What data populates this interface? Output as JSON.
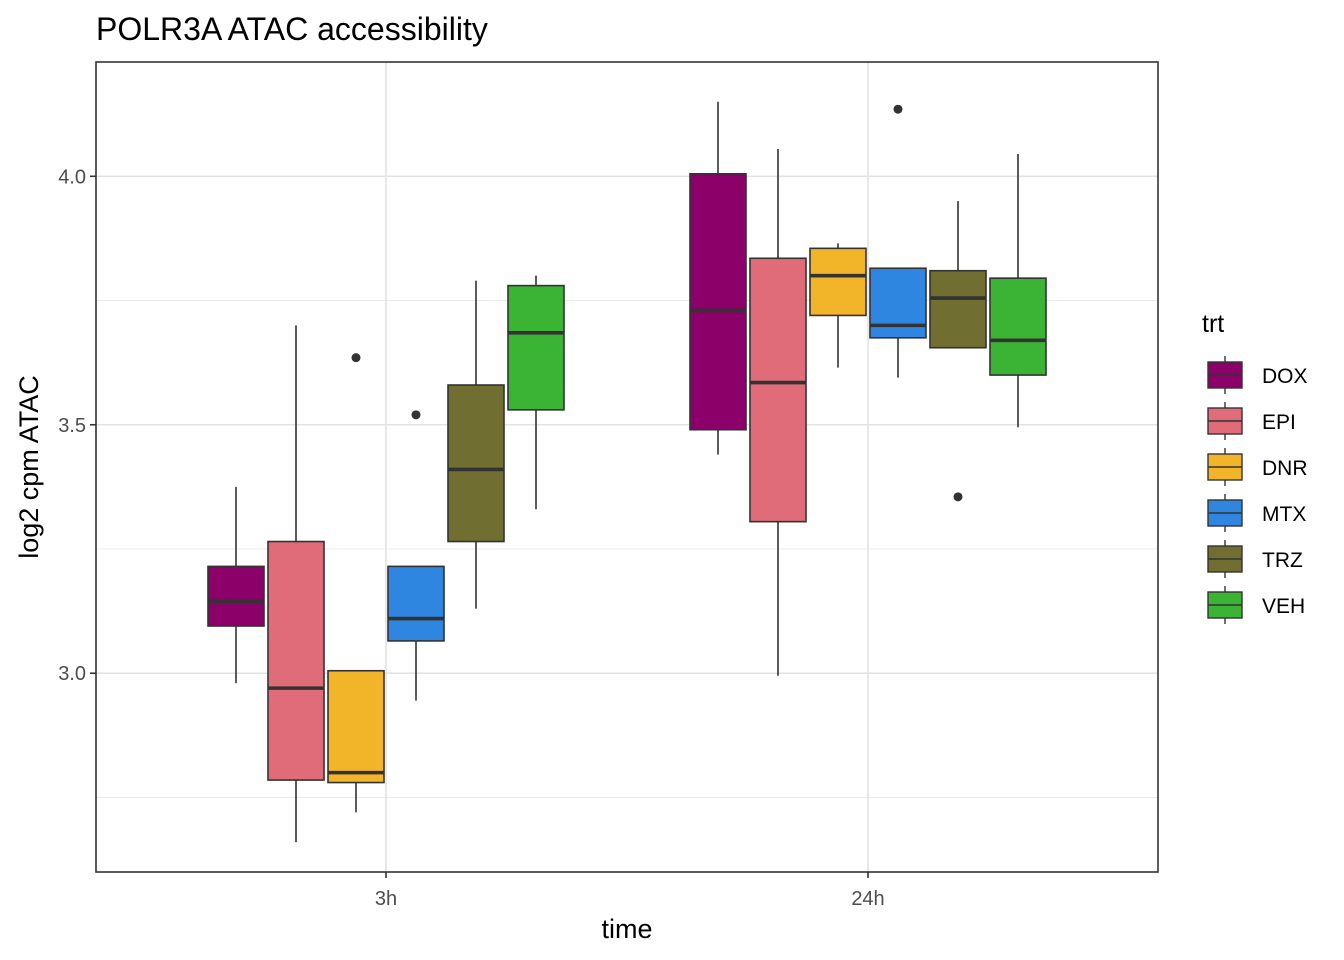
{
  "chart_data": {
    "type": "boxplot",
    "title": "POLR3A ATAC accessibility",
    "xlabel": "time",
    "ylabel": "log2 cpm ATAC",
    "categories": [
      "3h",
      "24h"
    ],
    "ylim": [
      2.6,
      4.23
    ],
    "yticks": [
      3.0,
      3.5,
      4.0
    ],
    "ytick_labels": [
      "3.0",
      "3.5",
      "4.0"
    ],
    "grid": true,
    "legend": {
      "title": "trt",
      "position": "right",
      "entries": [
        "DOX",
        "EPI",
        "DNR",
        "MTX",
        "TRZ",
        "VEH"
      ]
    },
    "colors": {
      "DOX": "#8B0069",
      "EPI": "#E06C7A",
      "DNR": "#F2B52A",
      "MTX": "#2E86E0",
      "TRZ": "#716E32",
      "VEH": "#3BB335"
    },
    "series": [
      {
        "name": "DOX",
        "boxes": [
          {
            "time": "3h",
            "min": 2.98,
            "q1": 3.095,
            "median": 3.145,
            "q3": 3.215,
            "max": 3.375,
            "outliers": []
          },
          {
            "time": "24h",
            "min": 3.44,
            "q1": 3.49,
            "median": 3.73,
            "q3": 4.005,
            "max": 4.15,
            "outliers": []
          }
        ]
      },
      {
        "name": "EPI",
        "boxes": [
          {
            "time": "3h",
            "min": 2.66,
            "q1": 2.785,
            "median": 2.97,
            "q3": 3.265,
            "max": 3.7,
            "outliers": []
          },
          {
            "time": "24h",
            "min": 2.995,
            "q1": 3.305,
            "median": 3.585,
            "q3": 3.835,
            "max": 4.055,
            "outliers": []
          }
        ]
      },
      {
        "name": "DNR",
        "boxes": [
          {
            "time": "3h",
            "min": 2.72,
            "q1": 2.78,
            "median": 2.8,
            "q3": 3.005,
            "max": 3.005,
            "outliers": [
              3.635
            ]
          },
          {
            "time": "24h",
            "min": 3.615,
            "q1": 3.72,
            "median": 3.8,
            "q3": 3.855,
            "max": 3.865,
            "outliers": []
          }
        ]
      },
      {
        "name": "MTX",
        "boxes": [
          {
            "time": "3h",
            "min": 2.945,
            "q1": 3.065,
            "median": 3.11,
            "q3": 3.215,
            "max": 3.215,
            "outliers": [
              3.52
            ]
          },
          {
            "time": "24h",
            "min": 3.595,
            "q1": 3.675,
            "median": 3.7,
            "q3": 3.815,
            "max": 3.815,
            "outliers": [
              4.135
            ]
          }
        ]
      },
      {
        "name": "TRZ",
        "boxes": [
          {
            "time": "3h",
            "min": 3.13,
            "q1": 3.265,
            "median": 3.41,
            "q3": 3.58,
            "max": 3.79,
            "outliers": []
          },
          {
            "time": "24h",
            "min": 3.655,
            "q1": 3.655,
            "median": 3.755,
            "q3": 3.81,
            "max": 3.95,
            "outliers": [
              3.355
            ]
          }
        ]
      },
      {
        "name": "VEH",
        "boxes": [
          {
            "time": "3h",
            "min": 3.33,
            "q1": 3.53,
            "median": 3.685,
            "q3": 3.78,
            "max": 3.8,
            "outliers": []
          },
          {
            "time": "24h",
            "min": 3.495,
            "q1": 3.6,
            "median": 3.67,
            "q3": 3.795,
            "max": 4.045,
            "outliers": []
          }
        ]
      }
    ]
  }
}
